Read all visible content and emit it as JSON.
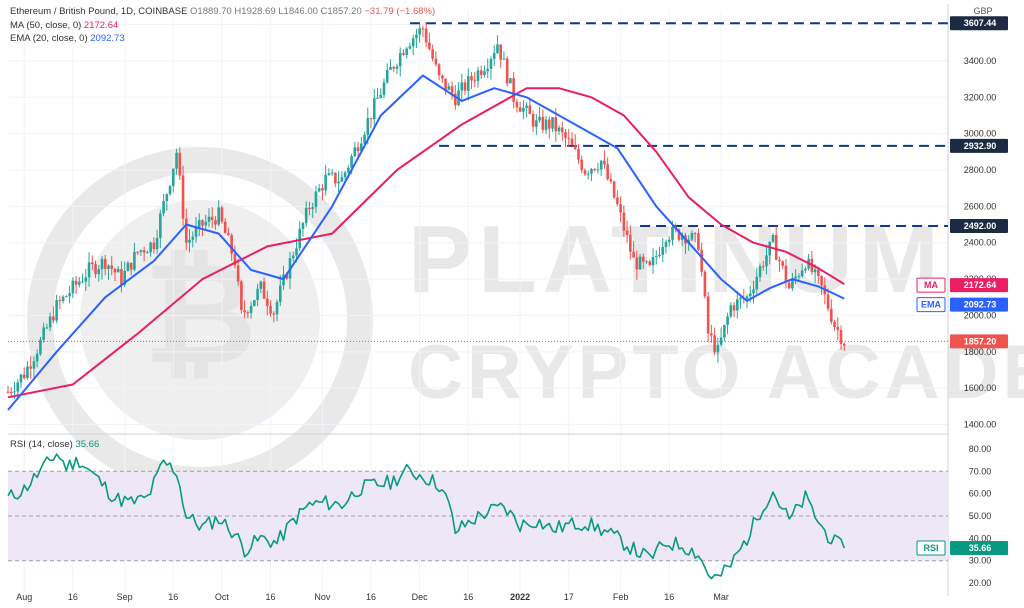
{
  "header": {
    "title": "Ethereum / British Pound, 1D, COINBASE",
    "open": "O1889.70",
    "high": "H1928.69",
    "low": "L1846.00",
    "close": "C1857.20",
    "change": "−31.79 (−1.68%)",
    "ma_label": "MA (50, close, 0)",
    "ma_value": "2172.64",
    "ema_label": "EMA (20, close, 0)",
    "ema_value": "2092.73"
  },
  "currency": "GBP",
  "watermark": {
    "line1": "PLATINUM",
    "line2": "CRYPTO ACADEMY"
  },
  "colors": {
    "candle_up": "#26a69a",
    "candle_down": "#ef5350",
    "ma": "#e91e63",
    "ema": "#2962ff",
    "rsi": "#089981",
    "level_line": "#0d3a8c",
    "rsi_band": "#ede7f6"
  },
  "chart_data": [
    {
      "type": "candlestick",
      "title": "Ethereum / British Pound, 1D, COINBASE",
      "y_ticks": [
        "1400.00",
        "1600.00",
        "1800.00",
        "2000.00",
        "2200.00",
        "2400.00",
        "2600.00",
        "2800.00",
        "3000.00",
        "3200.00",
        "3400.00",
        "3600.00"
      ],
      "ylim": [
        1370,
        3680
      ],
      "x_ticks": [
        "Aug",
        "16",
        "Sep",
        "16",
        "Oct",
        "16",
        "Nov",
        "16",
        "Dec",
        "16",
        "2022",
        "17",
        "Feb",
        "16",
        "Mar"
      ],
      "levels": [
        3607.44,
        2932.9,
        2492.0
      ],
      "level_labels": [
        "3607.44",
        "2932.90",
        "2492.00"
      ],
      "last_price": 1857.2,
      "last_price_label": "1857.20",
      "ma_tag": "MA",
      "ma_value": "2172.64",
      "ema_tag": "EMA",
      "ema_value": "2092.73",
      "close_path": [
        [
          0,
          1580
        ],
        [
          5,
          1680
        ],
        [
          10,
          1850
        ],
        [
          15,
          2050
        ],
        [
          20,
          2150
        ],
        [
          25,
          2250
        ],
        [
          30,
          2300
        ],
        [
          35,
          2200
        ],
        [
          40,
          2350
        ],
        [
          45,
          2400
        ],
        [
          50,
          2750
        ],
        [
          52,
          2900
        ],
        [
          55,
          2400
        ],
        [
          60,
          2500
        ],
        [
          65,
          2550
        ],
        [
          70,
          2300
        ],
        [
          72,
          2000
        ],
        [
          78,
          2150
        ],
        [
          82,
          2020
        ],
        [
          88,
          2350
        ],
        [
          93,
          2600
        ],
        [
          98,
          2750
        ],
        [
          103,
          2750
        ],
        [
          108,
          2950
        ],
        [
          113,
          3150
        ],
        [
          118,
          3350
        ],
        [
          123,
          3500
        ],
        [
          128,
          3580
        ],
        [
          133,
          3300
        ],
        [
          138,
          3200
        ],
        [
          143,
          3300
        ],
        [
          148,
          3400
        ],
        [
          151,
          3500
        ],
        [
          156,
          3200
        ],
        [
          163,
          3050
        ],
        [
          168,
          3050
        ],
        [
          173,
          2950
        ],
        [
          178,
          2800
        ],
        [
          183,
          2850
        ],
        [
          188,
          2600
        ],
        [
          193,
          2300
        ],
        [
          198,
          2250
        ],
        [
          203,
          2450
        ],
        [
          208,
          2450
        ],
        [
          213,
          2400
        ],
        [
          216,
          1900
        ],
        [
          219,
          1800
        ],
        [
          223,
          2050
        ],
        [
          228,
          2100
        ],
        [
          233,
          2300
        ],
        [
          236,
          2400
        ],
        [
          241,
          2150
        ],
        [
          246,
          2300
        ],
        [
          251,
          2150
        ],
        [
          255,
          1950
        ],
        [
          258,
          1857
        ]
      ],
      "series": [
        {
          "name": "MA (50, close, 0)",
          "points": [
            [
              0,
              1550
            ],
            [
              20,
              1620
            ],
            [
              40,
              1900
            ],
            [
              60,
              2200
            ],
            [
              80,
              2380
            ],
            [
              100,
              2450
            ],
            [
              120,
              2800
            ],
            [
              140,
              3050
            ],
            [
              160,
              3250
            ],
            [
              170,
              3250
            ],
            [
              180,
              3200
            ],
            [
              190,
              3100
            ],
            [
              200,
              2900
            ],
            [
              210,
              2650
            ],
            [
              220,
              2500
            ],
            [
              230,
              2400
            ],
            [
              240,
              2350
            ],
            [
              250,
              2260
            ],
            [
              258,
              2172.64
            ]
          ]
        },
        {
          "name": "EMA (20, close, 0)",
          "points": [
            [
              0,
              1480
            ],
            [
              15,
              1800
            ],
            [
              30,
              2100
            ],
            [
              45,
              2300
            ],
            [
              55,
              2500
            ],
            [
              65,
              2450
            ],
            [
              75,
              2250
            ],
            [
              85,
              2200
            ],
            [
              100,
              2600
            ],
            [
              115,
              3100
            ],
            [
              128,
              3320
            ],
            [
              140,
              3180
            ],
            [
              150,
              3250
            ],
            [
              160,
              3200
            ],
            [
              175,
              3050
            ],
            [
              188,
              2920
            ],
            [
              200,
              2600
            ],
            [
              210,
              2400
            ],
            [
              220,
              2200
            ],
            [
              228,
              2080
            ],
            [
              235,
              2150
            ],
            [
              242,
              2200
            ],
            [
              250,
              2160
            ],
            [
              258,
              2092.73
            ]
          ]
        }
      ]
    },
    {
      "type": "line",
      "title": "RSI (14, close)",
      "value_label": "35.66",
      "tag": "RSI",
      "y_ticks": [
        "20.00",
        "30.00",
        "40.00",
        "50.00",
        "60.00",
        "70.00",
        "80.00"
      ],
      "ylim": [
        16,
        84
      ],
      "bands": [
        30,
        50,
        70
      ],
      "series": [
        {
          "name": "RSI (14, close)",
          "points": [
            [
              0,
              58
            ],
            [
              5,
              62
            ],
            [
              10,
              70
            ],
            [
              15,
              78
            ],
            [
              18,
              72
            ],
            [
              22,
              75
            ],
            [
              28,
              66
            ],
            [
              33,
              58
            ],
            [
              38,
              56
            ],
            [
              43,
              58
            ],
            [
              48,
              74
            ],
            [
              52,
              70
            ],
            [
              55,
              50
            ],
            [
              60,
              45
            ],
            [
              65,
              49
            ],
            [
              70,
              42
            ],
            [
              73,
              35
            ],
            [
              78,
              40
            ],
            [
              83,
              38
            ],
            [
              88,
              48
            ],
            [
              93,
              55
            ],
            [
              98,
              56
            ],
            [
              103,
              55
            ],
            [
              108,
              62
            ],
            [
              113,
              64
            ],
            [
              118,
              65
            ],
            [
              123,
              70
            ],
            [
              128,
              68
            ],
            [
              133,
              64
            ],
            [
              136,
              55
            ],
            [
              138,
              43
            ],
            [
              143,
              48
            ],
            [
              148,
              52
            ],
            [
              153,
              54
            ],
            [
              158,
              46
            ],
            [
              163,
              48
            ],
            [
              168,
              44
            ],
            [
              173,
              46
            ],
            [
              178,
              47
            ],
            [
              183,
              44
            ],
            [
              188,
              40
            ],
            [
              193,
              35
            ],
            [
              198,
              31
            ],
            [
              203,
              38
            ],
            [
              208,
              37
            ],
            [
              213,
              33
            ],
            [
              216,
              24
            ],
            [
              219,
              22
            ],
            [
              223,
              28
            ],
            [
              228,
              40
            ],
            [
              233,
              55
            ],
            [
              236,
              61
            ],
            [
              241,
              48
            ],
            [
              246,
              58
            ],
            [
              251,
              45
            ],
            [
              255,
              38
            ],
            [
              258,
              35.66
            ]
          ]
        }
      ]
    }
  ]
}
